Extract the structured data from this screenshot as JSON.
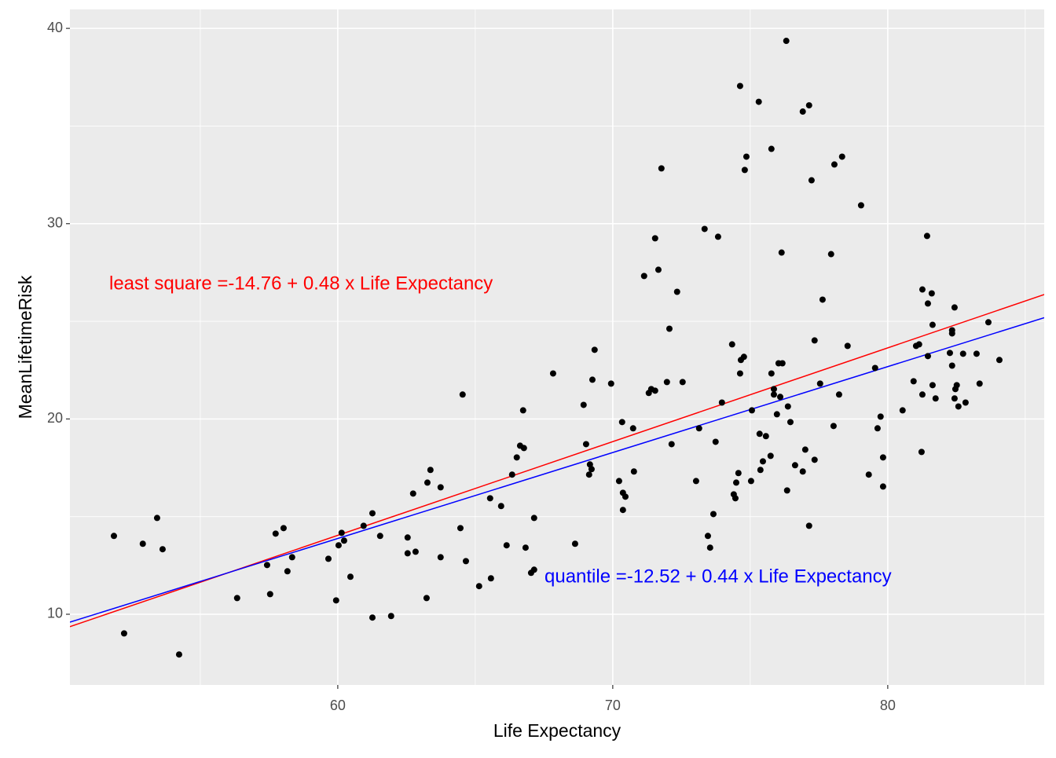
{
  "chart_data": {
    "type": "scatter",
    "xlabel": "Life Expectancy",
    "ylabel": "MeanLifetimeRisk",
    "xlim": [
      50.26,
      85.69
    ],
    "ylim": [
      6.38,
      40.97
    ],
    "xticks": [
      60,
      70,
      80
    ],
    "yticks": [
      10,
      20,
      30,
      40
    ],
    "grid": true,
    "series": [
      {
        "color": "#000000",
        "x": [
          51.86,
          52.23,
          52.91,
          53.43,
          53.63,
          54.23,
          56.34,
          57.43,
          57.54,
          57.74,
          58.03,
          58.17,
          58.34,
          59.66,
          59.94,
          60.03,
          60.14,
          60.23,
          60.46,
          60.94,
          61.26,
          61.26,
          61.54,
          61.94,
          62.54,
          62.54,
          62.74,
          62.83,
          63.23,
          63.26,
          63.37,
          63.74,
          63.74,
          64.46,
          64.54,
          64.66,
          65.14,
          65.54,
          65.57,
          65.94,
          66.14,
          66.34,
          66.51,
          66.63,
          66.74,
          66.77,
          66.83,
          67.03,
          67.14,
          67.14,
          67.83,
          68.63,
          68.94,
          69.03,
          69.14,
          69.17,
          69.23,
          69.26,
          69.34,
          69.94,
          70.23,
          70.34,
          70.37,
          70.37,
          70.46,
          70.74,
          70.77,
          71.14,
          71.31,
          71.4,
          71.54,
          71.54,
          71.66,
          71.77,
          71.97,
          72.06,
          72.14,
          72.34,
          72.54,
          73.03,
          73.14,
          73.34,
          73.46,
          73.54,
          73.66,
          73.74,
          73.83,
          73.97,
          74.34,
          74.4,
          74.46,
          74.49,
          74.57,
          74.63,
          74.63,
          74.66,
          74.77,
          74.8,
          74.86,
          75.03,
          75.06,
          75.31,
          75.34,
          75.37,
          75.46,
          75.57,
          75.74,
          75.77,
          75.77,
          75.86,
          75.86,
          75.97,
          76.03,
          76.09,
          76.14,
          76.17,
          76.31,
          76.34,
          76.37,
          76.46,
          76.63,
          76.91,
          76.91,
          77.0,
          77.14,
          77.14,
          77.23,
          77.34,
          77.34,
          77.54,
          77.63,
          77.94,
          78.03,
          78.06,
          78.23,
          78.34,
          78.54,
          79.03,
          79.31,
          79.54,
          79.63,
          79.74,
          79.83,
          79.83,
          80.54,
          80.94,
          81.03,
          81.14,
          81.23,
          81.26,
          81.26,
          81.43,
          81.46,
          81.46,
          81.6,
          81.63,
          81.63,
          81.74,
          82.26,
          82.34,
          82.34,
          82.34,
          82.43,
          82.43,
          82.46,
          82.51,
          82.57,
          82.74,
          82.83,
          83.23,
          83.34,
          83.66,
          84.06
        ],
        "values": [
          14.01,
          9.02,
          13.61,
          14.93,
          13.33,
          7.94,
          10.83,
          12.52,
          11.03,
          14.13,
          14.41,
          12.2,
          12.92,
          12.84,
          10.71,
          13.53,
          14.17,
          13.77,
          11.92,
          14.53,
          15.17,
          9.83,
          14.01,
          9.91,
          13.93,
          13.12,
          16.18,
          13.2,
          10.83,
          16.74,
          17.39,
          16.5,
          12.92,
          14.41,
          21.25,
          12.72,
          11.44,
          15.94,
          11.84,
          15.54,
          13.53,
          17.15,
          18.03,
          18.63,
          20.44,
          18.51,
          13.41,
          12.12,
          14.93,
          12.28,
          22.33,
          13.61,
          20.72,
          18.71,
          17.15,
          17.67,
          17.43,
          22.01,
          23.54,
          21.81,
          16.82,
          19.84,
          15.34,
          16.22,
          16.02,
          19.52,
          17.31,
          27.32,
          21.33,
          21.53,
          29.25,
          21.45,
          27.64,
          32.83,
          21.89,
          24.62,
          18.71,
          26.51,
          21.89,
          16.82,
          19.52,
          29.73,
          14.01,
          13.41,
          15.13,
          18.83,
          29.33,
          20.84,
          23.82,
          16.14,
          15.94,
          16.74,
          17.23,
          37.05,
          22.33,
          23.02,
          23.18,
          32.75,
          33.43,
          16.82,
          20.44,
          36.24,
          19.24,
          17.39,
          17.83,
          19.12,
          18.11,
          33.83,
          22.33,
          21.53,
          21.25,
          20.24,
          22.85,
          21.13,
          28.52,
          22.85,
          39.36,
          16.34,
          20.64,
          19.84,
          17.63,
          35.74,
          17.31,
          18.43,
          36.06,
          14.53,
          32.22,
          17.91,
          24.02,
          21.81,
          26.11,
          28.44,
          19.64,
          33.03,
          21.25,
          33.43,
          23.74,
          30.94,
          17.15,
          22.61,
          19.52,
          20.12,
          18.03,
          16.54,
          20.44,
          21.93,
          23.74,
          23.82,
          18.31,
          26.63,
          21.25,
          29.37,
          25.91,
          23.22,
          26.43,
          24.82,
          21.73,
          21.05,
          23.38,
          24.54,
          24.38,
          22.73,
          25.71,
          21.05,
          21.53,
          21.73,
          20.64,
          23.34,
          20.84,
          23.34,
          21.81,
          24.95,
          23.02
        ]
      }
    ],
    "lines": [
      {
        "label": "least square =-14.76 + 0.48 x Life Expectancy",
        "intercept": -14.76,
        "slope": 0.48,
        "color": "#ff0000"
      },
      {
        "label": "quantile =-12.52 + 0.44 x Life Expectancy",
        "intercept": -12.52,
        "slope": 0.44,
        "color": "#0000ff"
      }
    ]
  }
}
